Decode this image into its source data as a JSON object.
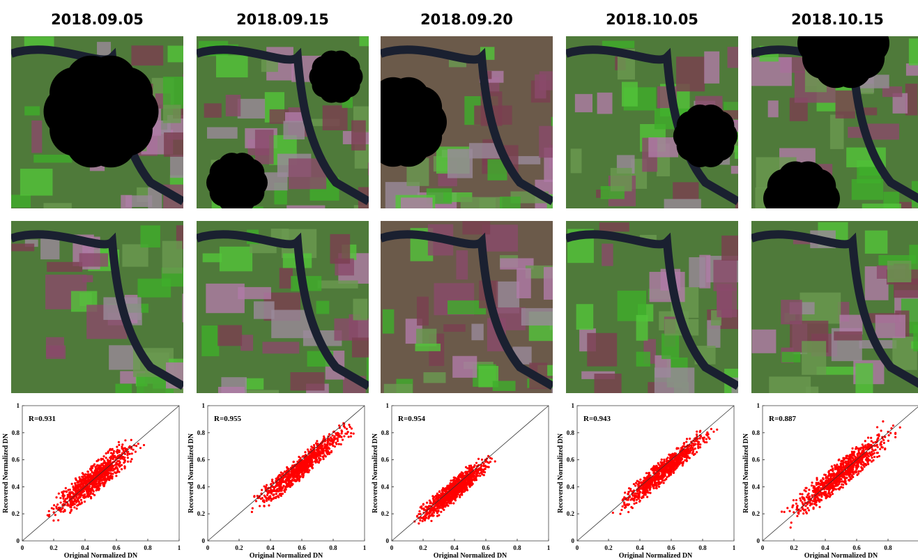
{
  "x_label": "Original Normalized DN",
  "y_label": "Recovered Normalized DN",
  "panels": [
    {
      "date": "2018.09.05",
      "r_label": "R=0.931",
      "xlim": [
        0,
        1
      ],
      "ylim": [
        0,
        1
      ],
      "xticks": [
        0,
        0.2,
        0.4,
        0.6,
        0.8,
        1
      ],
      "yticks": [
        0,
        0.2,
        0.4,
        0.6,
        0.8,
        1
      ]
    },
    {
      "date": "2018.09.15",
      "r_label": "R=0.955",
      "xlim": [
        0,
        1
      ],
      "ylim": [
        0,
        1
      ],
      "xticks": [
        0,
        0.2,
        0.4,
        0.6,
        0.8,
        1
      ],
      "yticks": [
        0,
        0.2,
        0.4,
        0.6,
        0.8,
        1
      ]
    },
    {
      "date": "2018.09.20",
      "r_label": "R=0.954",
      "xlim": [
        0,
        1
      ],
      "ylim": [
        0,
        1
      ],
      "xticks": [
        0,
        0.2,
        0.4,
        0.6,
        0.8,
        1
      ],
      "yticks": [
        0,
        0.2,
        0.4,
        0.6,
        0.8,
        1
      ]
    },
    {
      "date": "2018.10.05",
      "r_label": "R=0.943",
      "xlim": [
        0,
        1
      ],
      "ylim": [
        0,
        1
      ],
      "xticks": [
        0,
        0.2,
        0.4,
        0.6,
        0.8,
        1
      ],
      "yticks": [
        0,
        0.2,
        0.4,
        0.6,
        0.8,
        1
      ]
    },
    {
      "date": "2018.10.15",
      "r_label": "R=0.887",
      "xlim": [
        0,
        1
      ],
      "ylim": [
        0,
        1
      ],
      "xticks": [
        0,
        0.2,
        0.4,
        0.6,
        0.8
      ],
      "yticks": [
        0,
        0.2,
        0.4,
        0.6,
        0.8,
        1
      ]
    }
  ]
}
